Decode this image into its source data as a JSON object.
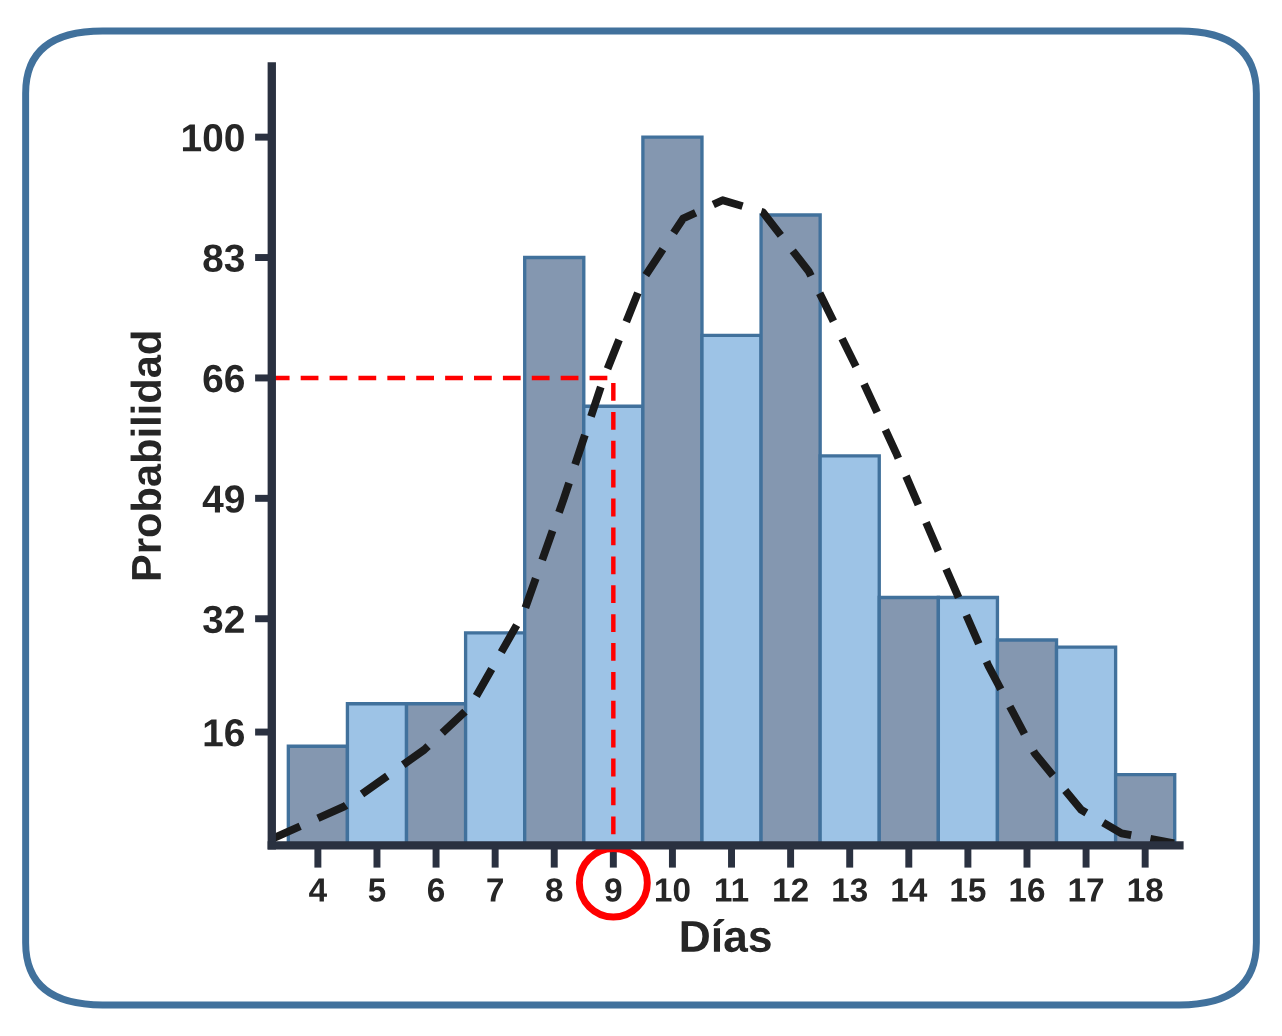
{
  "chart_data": {
    "type": "bar",
    "xlabel": "Días",
    "ylabel": "Probabilidad",
    "x": [
      4,
      5,
      6,
      7,
      8,
      9,
      10,
      11,
      12,
      13,
      14,
      15,
      16,
      17,
      18
    ],
    "series": [
      {
        "values": [
          14,
          20,
          20,
          30,
          83,
          62,
          100,
          72,
          89,
          55,
          35,
          35,
          29,
          28,
          10
        ],
        "colors": [
          "#8497b0",
          "#9dc3e6",
          "#8497b0",
          "#9dc3e6",
          "#8497b0",
          "#9dc3e6",
          "#8497b0",
          "#9dc3e6",
          "#8497b0",
          "#9dc3e6",
          "#8497b0",
          "#9dc3e6",
          "#8497b0",
          "#9dc3e6",
          "#8497b0"
        ]
      },
      {
        "type": "line",
        "color": "#1a1a1a",
        "line_style": "dashed",
        "x": [
          3.22,
          4.45,
          5.8,
          6.58,
          7.48,
          8.16,
          8.83,
          9.51,
          10.18,
          10.85,
          11.53,
          12.31,
          13.1,
          13.78,
          14.56,
          15.35,
          16.13,
          16.92,
          17.6,
          18.49
        ],
        "values": [
          0.9,
          5.5,
          13.5,
          19.6,
          32.8,
          48.9,
          65.8,
          80,
          88.5,
          91.1,
          89.4,
          81,
          67.7,
          55.5,
          40.4,
          25.3,
          13,
          5,
          1.7,
          0.3
        ]
      },
      {
        "type": "line",
        "color": "#ff0000",
        "line_style": "dashed",
        "x": [
          3.22,
          9,
          9
        ],
        "values": [
          66,
          66,
          0
        ]
      }
    ],
    "xlim": [
      3.22,
      18.58
    ],
    "xticks": [
      4,
      5,
      6,
      7,
      8,
      9,
      10,
      11,
      12,
      13,
      14,
      15,
      16,
      17,
      18
    ],
    "ylim": [
      0,
      110
    ],
    "yticks": [
      16,
      32,
      49,
      66,
      83,
      100
    ],
    "grid": false,
    "legend": false
  }
}
